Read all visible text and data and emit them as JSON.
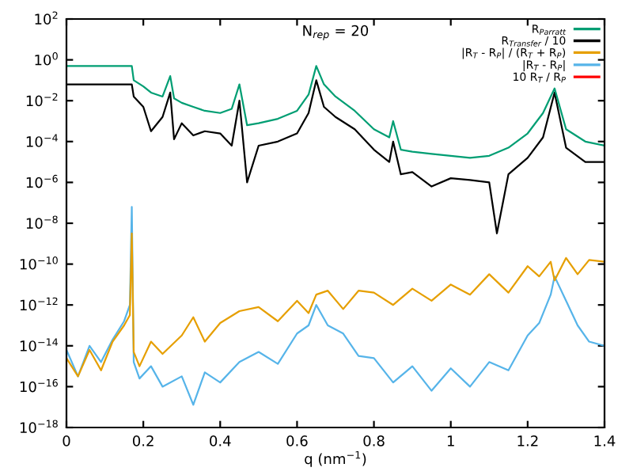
{
  "chart_data": {
    "type": "line",
    "xlabel": "q (nm$^{−1}$)",
    "annotations": [
      "N$_{rep}$ = 20"
    ],
    "xlim": [
      0,
      1.4
    ],
    "xticks": [
      0,
      0.2,
      0.4,
      0.6,
      0.8,
      1,
      1.2,
      1.4
    ],
    "ylim": [
      1e-18,
      100
    ],
    "log": "y",
    "yticks": [
      {
        "value": 100,
        "label": "10$^{2}$"
      },
      {
        "value": 1,
        "label": "10$^{0}$"
      },
      {
        "value": 0.01,
        "label": "10$^{−2}$"
      },
      {
        "value": 0.0001,
        "label": "10$^{−4}$"
      },
      {
        "value": 1e-06,
        "label": "10$^{−6}$"
      },
      {
        "value": 1e-08,
        "label": "10$^{−8}$"
      },
      {
        "value": 1e-10,
        "label": "10$^{−10}$"
      },
      {
        "value": 1e-12,
        "label": "10$^{−12}$"
      },
      {
        "value": 1e-14,
        "label": "10$^{−14}$"
      },
      {
        "value": 1e-16,
        "label": "10$^{−16}$"
      },
      {
        "value": 1e-18,
        "label": "10$^{−18}$"
      }
    ],
    "legend": "top right",
    "grid": false,
    "series": [
      {
        "name": "R$_{Parratt}$",
        "color": "#009e73",
        "x": [
          0,
          0.17,
          0.175,
          0.2,
          0.22,
          0.25,
          0.27,
          0.28,
          0.3,
          0.33,
          0.36,
          0.4,
          0.43,
          0.45,
          0.47,
          0.5,
          0.55,
          0.6,
          0.63,
          0.65,
          0.67,
          0.7,
          0.75,
          0.8,
          0.84,
          0.85,
          0.87,
          0.9,
          0.95,
          1.0,
          1.05,
          1.1,
          1.15,
          1.2,
          1.24,
          1.27,
          1.3,
          1.35,
          1.4
        ],
        "values": [
          0.5,
          0.5,
          0.1,
          0.05,
          0.025,
          0.016,
          0.16,
          0.013,
          0.0079,
          0.005,
          0.0032,
          0.0025,
          0.004,
          0.063,
          0.00063,
          0.00079,
          0.0013,
          0.0032,
          0.02,
          0.5,
          0.063,
          0.016,
          0.0032,
          0.0004,
          0.00016,
          0.001,
          4e-05,
          3.2e-05,
          2.5e-05,
          2e-05,
          1.6e-05,
          2e-05,
          5e-05,
          0.00025,
          0.0025,
          0.04,
          0.0004,
          0.0001,
          6.3e-05
        ]
      },
      {
        "name": "R$_{Transfer}$ / 10",
        "color": "#000000",
        "x": [
          0,
          0.17,
          0.175,
          0.2,
          0.22,
          0.25,
          0.27,
          0.28,
          0.3,
          0.33,
          0.36,
          0.4,
          0.43,
          0.45,
          0.47,
          0.5,
          0.55,
          0.6,
          0.63,
          0.65,
          0.67,
          0.7,
          0.75,
          0.8,
          0.84,
          0.85,
          0.87,
          0.9,
          0.95,
          1.0,
          1.05,
          1.1,
          1.12,
          1.15,
          1.2,
          1.24,
          1.27,
          1.3,
          1.35,
          1.4
        ],
        "values": [
          0.063,
          0.063,
          0.016,
          0.005,
          0.00032,
          0.0016,
          0.025,
          0.00013,
          0.00079,
          0.0002,
          0.00032,
          0.00025,
          6.3e-05,
          0.01,
          1e-06,
          6.3e-05,
          0.0001,
          0.00025,
          0.0025,
          0.1,
          0.005,
          0.0016,
          0.0004,
          4e-05,
          1e-05,
          0.0001,
          2.5e-06,
          3.2e-06,
          6.3e-07,
          1.6e-06,
          1.3e-06,
          1e-06,
          3.2e-09,
          2.5e-06,
          1.6e-05,
          0.00016,
          0.025,
          5e-05,
          1e-05,
          1e-05
        ]
      },
      {
        "name": "|R$_{T}$ - R$_{P}$| / (R$_{T}$ + R$_{P}$)",
        "color": "#e69f00",
        "x": [
          0,
          0.03,
          0.06,
          0.09,
          0.12,
          0.15,
          0.165,
          0.17,
          0.175,
          0.19,
          0.22,
          0.25,
          0.3,
          0.33,
          0.36,
          0.4,
          0.45,
          0.5,
          0.55,
          0.6,
          0.63,
          0.65,
          0.68,
          0.72,
          0.76,
          0.8,
          0.85,
          0.9,
          0.95,
          1.0,
          1.05,
          1.1,
          1.15,
          1.2,
          1.23,
          1.26,
          1.27,
          1.3,
          1.33,
          1.36,
          1.4
        ],
        "values": [
          2.5e-15,
          3.2e-16,
          6.3e-15,
          6.3e-16,
          1.6e-14,
          1e-13,
          3.2e-13,
          3.2e-09,
          5e-15,
          1e-15,
          1.6e-14,
          4e-15,
          3.2e-14,
          2.5e-13,
          1.6e-14,
          1.3e-13,
          5e-13,
          7.9e-13,
          1.6e-13,
          1.6e-12,
          4e-13,
          3.2e-12,
          5e-12,
          6.3e-13,
          5e-12,
          4e-12,
          1e-12,
          6.3e-12,
          1.6e-12,
          1e-11,
          3.2e-12,
          3.2e-11,
          4e-12,
          7.9e-11,
          2.5e-11,
          1.3e-10,
          1.6e-11,
          2e-10,
          3.2e-11,
          1.6e-10,
          1.3e-10
        ]
      },
      {
        "name": "|R$_{T}$ - R$_{P}$|",
        "color": "#56b4e9",
        "x": [
          0,
          0.03,
          0.06,
          0.09,
          0.12,
          0.15,
          0.165,
          0.17,
          0.175,
          0.19,
          0.22,
          0.25,
          0.3,
          0.33,
          0.36,
          0.4,
          0.45,
          0.5,
          0.55,
          0.6,
          0.63,
          0.65,
          0.68,
          0.72,
          0.76,
          0.8,
          0.85,
          0.9,
          0.95,
          1.0,
          1.05,
          1.1,
          1.15,
          1.2,
          1.23,
          1.26,
          1.27,
          1.3,
          1.33,
          1.36,
          1.4
        ],
        "values": [
          6.3e-15,
          3.2e-16,
          1e-14,
          1.6e-15,
          2e-14,
          1.6e-13,
          1e-12,
          6.3e-08,
          1.6e-15,
          2.5e-16,
          1e-15,
          1e-16,
          3.2e-16,
          1.3e-17,
          5e-16,
          1.6e-16,
          1.6e-15,
          5e-15,
          1.3e-15,
          4e-14,
          1e-13,
          1e-12,
          1e-13,
          4e-14,
          3.2e-15,
          2.5e-15,
          1.6e-16,
          1e-15,
          6.3e-17,
          7.9e-16,
          1e-16,
          1.6e-15,
          6.3e-16,
          3.2e-14,
          1.3e-13,
          3.2e-12,
          2.5e-11,
          1.6e-12,
          1e-13,
          1.6e-14,
          1e-14
        ]
      },
      {
        "name": "10 R$_{T}$ / R$_{P}$",
        "color": "#ff0000"
      }
    ]
  }
}
